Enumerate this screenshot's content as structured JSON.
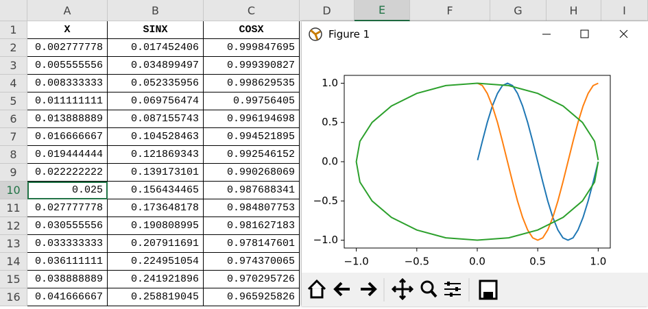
{
  "sheet": {
    "columns": [
      "A",
      "B",
      "C",
      "D",
      "E",
      "F",
      "G",
      "H",
      "I"
    ],
    "rows": [
      {
        "number": 1,
        "cells": [
          "X",
          "SINX",
          "COSX"
        ]
      },
      {
        "number": 2,
        "cells": [
          "0.002777778",
          "0.017452406",
          "0.999847695"
        ]
      },
      {
        "number": 3,
        "cells": [
          "0.005555556",
          "0.034899497",
          "0.999390827"
        ]
      },
      {
        "number": 4,
        "cells": [
          "0.008333333",
          "0.052335956",
          "0.998629535"
        ]
      },
      {
        "number": 5,
        "cells": [
          "0.011111111",
          "0.069756474",
          "0.99756405"
        ]
      },
      {
        "number": 6,
        "cells": [
          "0.013888889",
          "0.087155743",
          "0.996194698"
        ]
      },
      {
        "number": 7,
        "cells": [
          "0.016666667",
          "0.104528463",
          "0.994521895"
        ]
      },
      {
        "number": 8,
        "cells": [
          "0.019444444",
          "0.121869343",
          "0.992546152"
        ]
      },
      {
        "number": 9,
        "cells": [
          "0.022222222",
          "0.139173101",
          "0.990268069"
        ]
      },
      {
        "number": 10,
        "cells": [
          "0.025",
          "0.156434465",
          "0.987688341"
        ]
      },
      {
        "number": 11,
        "cells": [
          "0.027777778",
          "0.173648178",
          "0.984807753"
        ]
      },
      {
        "number": 12,
        "cells": [
          "0.030555556",
          "0.190808995",
          "0.981627183"
        ]
      },
      {
        "number": 13,
        "cells": [
          "0.033333333",
          "0.207911691",
          "0.978147601"
        ]
      },
      {
        "number": 14,
        "cells": [
          "0.036111111",
          "0.224951054",
          "0.974370065"
        ]
      },
      {
        "number": 15,
        "cells": [
          "0.038888889",
          "0.241921896",
          "0.970295726"
        ]
      },
      {
        "number": 16,
        "cells": [
          "0.041666667",
          "0.258819045",
          "0.965925826"
        ]
      }
    ]
  },
  "figure": {
    "title": "Figure 1",
    "chart_data": {
      "type": "line",
      "xlim": [
        -1.1,
        1.1
      ],
      "ylim": [
        -1.1,
        1.1
      ],
      "xticks": [
        {
          "value": -1,
          "label": "−1.0"
        },
        {
          "value": -0.5,
          "label": "−0.5"
        },
        {
          "value": 0,
          "label": "0.0"
        },
        {
          "value": 0.5,
          "label": "0.5"
        },
        {
          "value": 1,
          "label": "1.0"
        }
      ],
      "yticks": [
        {
          "value": -1,
          "label": "−1.0"
        },
        {
          "value": -0.5,
          "label": "−0.5"
        },
        {
          "value": 0,
          "label": "0.0"
        },
        {
          "value": 0.5,
          "label": "0.5"
        },
        {
          "value": 1,
          "label": "1.0"
        }
      ],
      "series": [
        {
          "color": "#1f77b4",
          "x": [
            0.003,
            0.042,
            0.083,
            0.125,
            0.167,
            0.208,
            0.25,
            0.292,
            0.333,
            0.375,
            0.417,
            0.458,
            0.5,
            0.542,
            0.583,
            0.625,
            0.667,
            0.708,
            0.75,
            0.792,
            0.833,
            0.875,
            0.917,
            0.958,
            1
          ],
          "values": [
            0.02,
            0.26,
            0.5,
            0.71,
            0.87,
            0.97,
            1,
            0.97,
            0.87,
            0.71,
            0.5,
            0.26,
            0,
            -0.26,
            -0.5,
            -0.71,
            -0.87,
            -0.97,
            -1,
            -0.97,
            -0.87,
            -0.71,
            -0.5,
            -0.26,
            0
          ]
        },
        {
          "color": "#ff7f0e",
          "x": [
            0.003,
            0.042,
            0.083,
            0.125,
            0.167,
            0.208,
            0.25,
            0.292,
            0.333,
            0.375,
            0.417,
            0.458,
            0.5,
            0.542,
            0.583,
            0.625,
            0.667,
            0.708,
            0.75,
            0.792,
            0.833,
            0.875,
            0.917,
            0.958,
            1
          ],
          "values": [
            1,
            0.97,
            0.87,
            0.71,
            0.5,
            0.26,
            0,
            -0.26,
            -0.5,
            -0.71,
            -0.87,
            -0.97,
            -1,
            -0.97,
            -0.87,
            -0.71,
            -0.5,
            -0.26,
            0,
            0.26,
            0.5,
            0.71,
            0.87,
            0.97,
            1
          ]
        },
        {
          "color": "#2ca02c",
          "x": [
            1,
            0.97,
            0.87,
            0.71,
            0.5,
            0.26,
            0,
            -0.26,
            -0.5,
            -0.71,
            -0.87,
            -0.97,
            -1,
            -0.97,
            -0.87,
            -0.71,
            -0.5,
            -0.26,
            0,
            0.26,
            0.5,
            0.71,
            0.87,
            0.97,
            1
          ],
          "values": [
            0.02,
            0.26,
            0.5,
            0.71,
            0.87,
            0.97,
            1,
            0.97,
            0.87,
            0.71,
            0.5,
            0.26,
            0,
            -0.26,
            -0.5,
            -0.71,
            -0.87,
            -0.97,
            -1,
            -0.97,
            -0.87,
            -0.71,
            -0.5,
            -0.26,
            0
          ]
        }
      ]
    }
  }
}
